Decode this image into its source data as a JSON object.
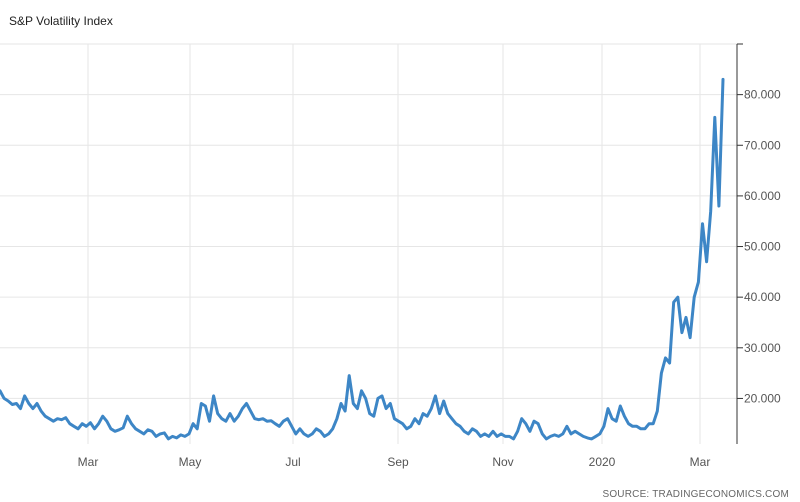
{
  "title": "S&P Volatility Index",
  "source": "SOURCE: TRADINGECONOMICS.COM",
  "colors": {
    "line": "#3d86c6",
    "grid": "#e6e6e6",
    "axis": "#333333",
    "text": "#555555"
  },
  "chart_data": {
    "type": "line",
    "title": "S&P Volatility Index",
    "xlabel": "",
    "ylabel": "",
    "ylim": [
      11,
      90
    ],
    "grid": true,
    "legend": "none",
    "x_tick_labels": [
      "Mar",
      "May",
      "Jul",
      "Sep",
      "Nov",
      "2020",
      "Mar"
    ],
    "y_tick_labels": [
      "20.000",
      "30.000",
      "40.000",
      "50.000",
      "60.000",
      "70.000",
      "80.000"
    ],
    "y_ticks": [
      20,
      30,
      40,
      50,
      60,
      70,
      80
    ],
    "series": [
      {
        "values": [
          21.5,
          20.0,
          19.5,
          18.8,
          19.0,
          18.0,
          20.5,
          19.0,
          18.0,
          19.0,
          17.5,
          16.5,
          16.0,
          15.5,
          16.0,
          15.8,
          16.2,
          15.0,
          14.5,
          14.0,
          15.0,
          14.5,
          15.2,
          14.0,
          15.0,
          16.5,
          15.5,
          14.0,
          13.5,
          13.8,
          14.2,
          16.5,
          15.0,
          14.0,
          13.5,
          13.0,
          13.8,
          13.5,
          12.5,
          13.0,
          13.2,
          12.0,
          12.5,
          12.2,
          12.8,
          12.5,
          13.0,
          15.0,
          14.0,
          19.0,
          18.5,
          15.5,
          20.5,
          17.0,
          16.0,
          15.5,
          17.0,
          15.5,
          16.5,
          18.0,
          19.0,
          17.5,
          16.0,
          15.8,
          16.0,
          15.5,
          15.6,
          15.0,
          14.5,
          15.5,
          16.0,
          14.5,
          13.0,
          14.0,
          13.0,
          12.5,
          13.0,
          14.0,
          13.5,
          12.5,
          13.0,
          14.0,
          16.0,
          19.0,
          17.5,
          24.5,
          19.0,
          18.0,
          21.5,
          20.0,
          17.0,
          16.5,
          20.0,
          20.5,
          18.0,
          19.0,
          16.0,
          15.5,
          15.0,
          14.0,
          14.5,
          16.0,
          15.0,
          17.0,
          16.5,
          18.0,
          20.5,
          17.0,
          19.5,
          17.0,
          16.0,
          15.0,
          14.5,
          13.5,
          13.0,
          14.0,
          13.5,
          12.5,
          13.0,
          12.5,
          13.5,
          12.5,
          13.0,
          12.5,
          12.5,
          12.0,
          13.5,
          16.0,
          15.0,
          13.5,
          15.5,
          15.0,
          13.0,
          12.0,
          12.5,
          12.8,
          12.5,
          13.0,
          14.5,
          13.0,
          13.5,
          13.0,
          12.5,
          12.2,
          12.0,
          12.5,
          13.0,
          14.5,
          18.0,
          16.0,
          15.5,
          18.5,
          16.5,
          15.0,
          14.5,
          14.5,
          14.0,
          14.0,
          15.0,
          15.0,
          17.5,
          25.0,
          28.0,
          27.0,
          39.0,
          40.0,
          33.0,
          36.0,
          32.0,
          40.0,
          43.0,
          54.5,
          47.0,
          57.0,
          75.5,
          58.0,
          83.0
        ]
      }
    ]
  }
}
